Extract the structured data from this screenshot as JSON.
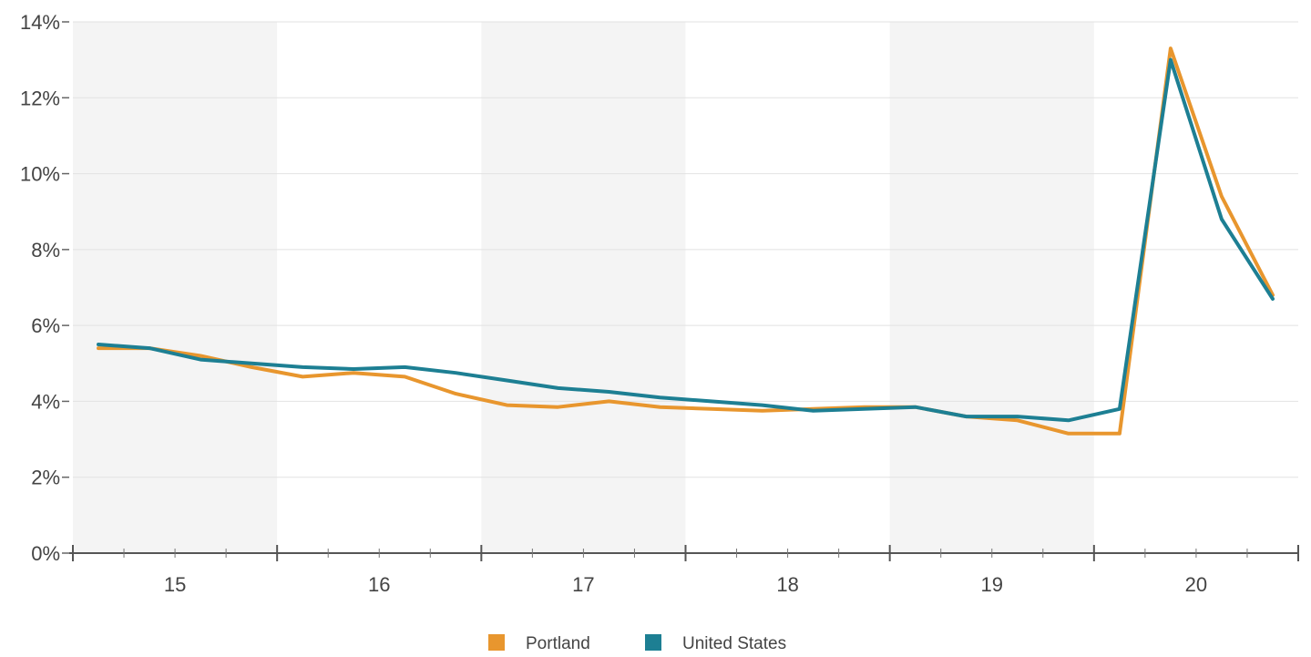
{
  "chart_data": {
    "type": "line",
    "title": "",
    "xlabel": "",
    "ylabel": "",
    "xlim": [
      2014.5,
      2020.5
    ],
    "ylim": [
      0,
      14
    ],
    "x_ticks": [
      {
        "value": 2015,
        "label": "15"
      },
      {
        "value": 2016,
        "label": "16"
      },
      {
        "value": 2017,
        "label": "17"
      },
      {
        "value": 2018,
        "label": "18"
      },
      {
        "value": 2019,
        "label": "19"
      },
      {
        "value": 2020,
        "label": "20"
      }
    ],
    "y_ticks": [
      {
        "value": 0,
        "label": "0%"
      },
      {
        "value": 2,
        "label": "2%"
      },
      {
        "value": 4,
        "label": "4%"
      },
      {
        "value": 6,
        "label": "6%"
      },
      {
        "value": 8,
        "label": "8%"
      },
      {
        "value": 10,
        "label": "10%"
      },
      {
        "value": 12,
        "label": "12%"
      },
      {
        "value": 14,
        "label": "14%"
      }
    ],
    "year_bands": [
      {
        "from": 2014.5,
        "to": 2015.5,
        "shaded": true
      },
      {
        "from": 2015.5,
        "to": 2016.5,
        "shaded": false
      },
      {
        "from": 2016.5,
        "to": 2017.5,
        "shaded": true
      },
      {
        "from": 2017.5,
        "to": 2018.5,
        "shaded": false
      },
      {
        "from": 2018.5,
        "to": 2019.5,
        "shaded": true
      },
      {
        "from": 2019.5,
        "to": 2020.5,
        "shaded": false
      }
    ],
    "grid": true,
    "legend_position": "bottom-center",
    "x": [
      2014.625,
      2014.875,
      2015.125,
      2015.375,
      2015.625,
      2015.875,
      2016.125,
      2016.375,
      2016.625,
      2016.875,
      2017.125,
      2017.375,
      2017.625,
      2017.875,
      2018.125,
      2018.375,
      2018.625,
      2018.875,
      2019.125,
      2019.375,
      2019.625,
      2019.875,
      2020.125,
      2020.375
    ],
    "series": [
      {
        "name": "Portland",
        "color": "#e8962e",
        "values": [
          5.4,
          5.4,
          5.2,
          4.9,
          4.65,
          4.75,
          4.65,
          4.2,
          3.9,
          3.85,
          4.0,
          3.85,
          3.8,
          3.75,
          3.8,
          3.85,
          3.85,
          3.6,
          3.5,
          3.15,
          3.15,
          13.3,
          9.4,
          6.8
        ]
      },
      {
        "name": "United States",
        "color": "#1d7f93",
        "values": [
          5.5,
          5.4,
          5.1,
          5.0,
          4.9,
          4.85,
          4.9,
          4.75,
          4.55,
          4.35,
          4.25,
          4.1,
          4.0,
          3.9,
          3.75,
          3.8,
          3.85,
          3.6,
          3.6,
          3.5,
          3.8,
          13.0,
          8.8,
          6.7
        ]
      }
    ]
  }
}
